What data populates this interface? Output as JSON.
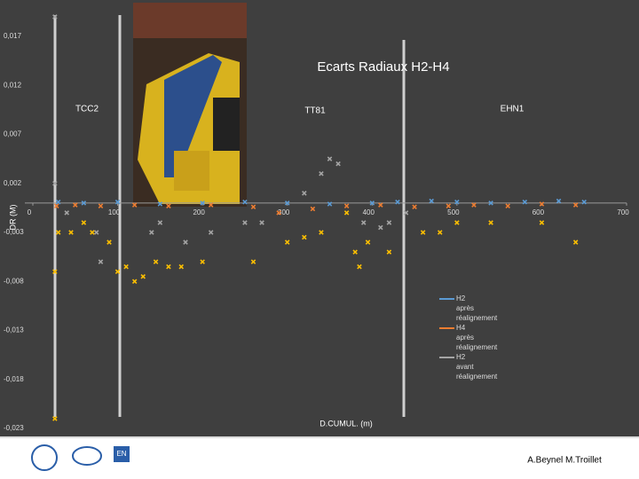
{
  "chart_data": {
    "type": "scatter",
    "title": "Ecarts Radiaux H2-H4",
    "x_label": "D.CUMUL. (m)",
    "y_label": "DR (M)",
    "annotations": [
      "TCC2",
      "TT81",
      "EHN1"
    ],
    "xlim": [
      0,
      700
    ],
    "xticks": [
      0,
      100,
      200,
      300,
      400,
      500,
      600,
      700
    ],
    "ylim": [
      -0.023,
      0.0195
    ],
    "yticks": [
      {
        "value": 0.017,
        "label": "0,017"
      },
      {
        "value": 0.012,
        "label": "0,012"
      },
      {
        "value": 0.007,
        "label": "0,007"
      },
      {
        "value": 0.002,
        "label": "0,002"
      },
      {
        "value": -0.003,
        "label": "-0,003"
      },
      {
        "value": -0.008,
        "label": "-0,008"
      },
      {
        "value": -0.013,
        "label": "-0,013"
      },
      {
        "value": -0.018,
        "label": "-0,018"
      },
      {
        "value": -0.023,
        "label": "-0,023"
      }
    ],
    "series": [
      {
        "name": "H2 après réalignement",
        "color": "#5b9bd5",
        "x": [
          30,
          60,
          100,
          150,
          200,
          250,
          300,
          350,
          400,
          430,
          470,
          500,
          540,
          580,
          620,
          650
        ],
        "values": [
          0.0001,
          0.0,
          0.0001,
          -0.0001,
          0.0,
          0.0001,
          0.0,
          -0.0001,
          0.0,
          0.0001,
          0.0002,
          0.0001,
          0.0,
          0.0001,
          0.0002,
          0.0001
        ]
      },
      {
        "name": "H4 après réalignement",
        "color": "#ed7d31",
        "x": [
          28,
          50,
          80,
          120,
          160,
          210,
          260,
          290,
          330,
          370,
          410,
          450,
          490,
          520,
          560,
          600,
          640
        ],
        "values": [
          -0.0003,
          -0.0002,
          -0.0003,
          -0.0002,
          -0.0003,
          -0.0002,
          -0.0004,
          -0.001,
          -0.0006,
          -0.0003,
          -0.0002,
          -0.0004,
          -0.0003,
          -0.0002,
          -0.0003,
          -0.0001,
          -0.0002
        ]
      },
      {
        "name": "H2 avant réalignement",
        "color": "#a5a5a5",
        "x": [
          26,
          26,
          40,
          75,
          80,
          140,
          150,
          180,
          210,
          250,
          270,
          320,
          340,
          350,
          360,
          390,
          410,
          420,
          440
        ],
        "values": [
          0.019,
          0.002,
          -0.001,
          -0.003,
          -0.006,
          -0.003,
          -0.002,
          -0.004,
          -0.003,
          -0.002,
          -0.002,
          0.001,
          0.003,
          0.0045,
          0.004,
          -0.002,
          -0.0025,
          -0.002,
          -0.001
        ]
      },
      {
        "color": "#ffc000",
        "x": [
          26,
          26,
          30,
          45,
          60,
          70,
          90,
          100,
          110,
          120,
          130,
          145,
          160,
          175,
          200,
          260,
          300,
          320,
          340,
          370,
          380,
          385,
          395,
          420,
          460,
          480,
          500,
          540,
          600,
          640
        ],
        "values": [
          -0.007,
          -0.022,
          -0.003,
          -0.003,
          -0.002,
          -0.003,
          -0.004,
          -0.007,
          -0.0065,
          -0.008,
          -0.0075,
          -0.006,
          -0.0065,
          -0.0065,
          -0.006,
          -0.006,
          -0.004,
          -0.0035,
          -0.003,
          -0.001,
          -0.005,
          -0.0065,
          -0.004,
          -0.005,
          -0.003,
          -0.003,
          -0.002,
          -0.002,
          -0.002,
          -0.004
        ]
      }
    ]
  },
  "footer": {
    "author": "A.Beynel M.Troillet",
    "logo_text": "EN"
  }
}
